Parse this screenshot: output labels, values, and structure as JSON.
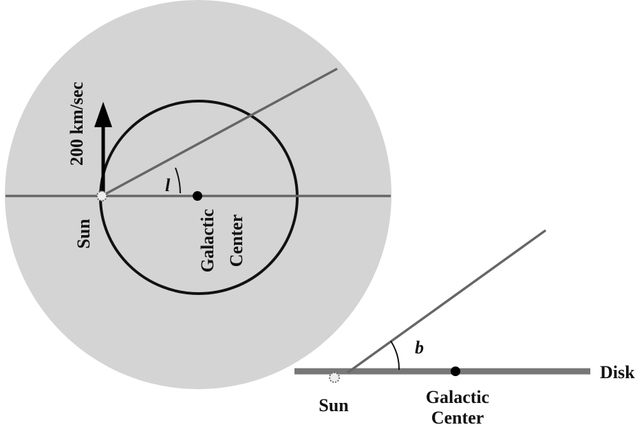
{
  "top_view": {
    "velocity_label": "200 km/sec",
    "longitude_label": "l",
    "sun_label": "Sun",
    "center_label": [
      "Galactic",
      "Center"
    ]
  },
  "side_view": {
    "latitude_label": "b",
    "disk_label": "Disk",
    "sun_label": "Sun",
    "center_label": [
      "Galactic",
      "Center"
    ]
  }
}
